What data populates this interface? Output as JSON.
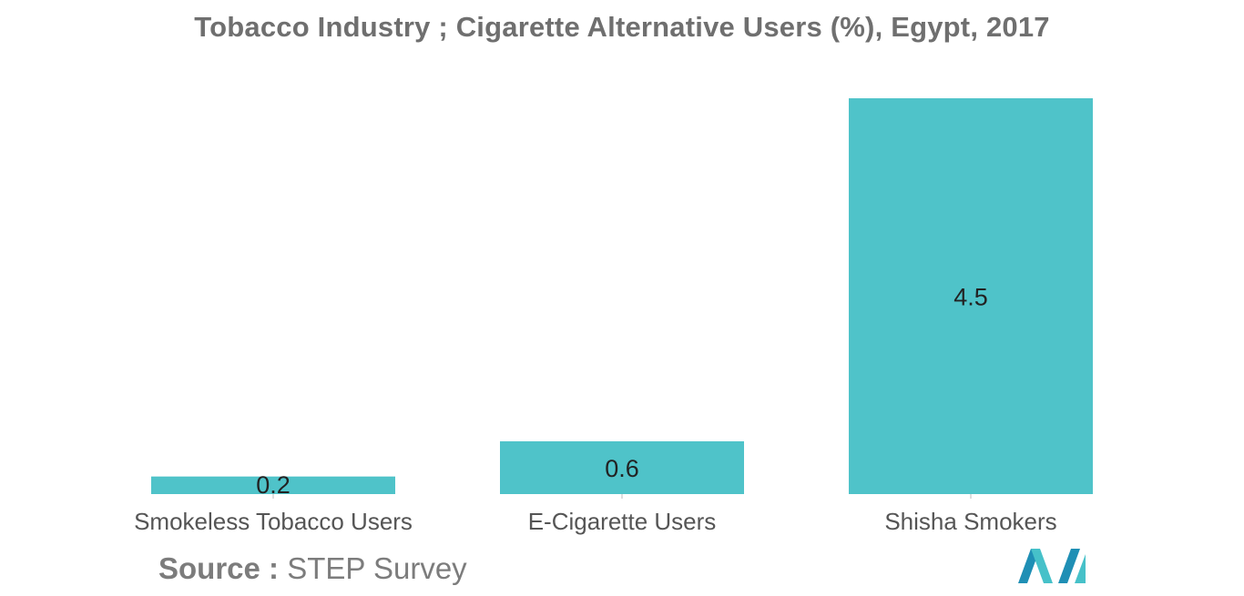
{
  "chart_data": {
    "type": "bar",
    "title": "Tobacco Industry ; Cigarette Alternative Users (%), Egypt, 2017",
    "categories": [
      "Smokeless Tobacco Users",
      "E-Cigarette Users",
      "Shisha Smokers"
    ],
    "values": [
      0.2,
      0.6,
      4.5
    ],
    "data_labels": [
      "0.2",
      "0.6",
      "4.5"
    ],
    "xlabel": "",
    "ylabel": "",
    "ylim": [
      0,
      4.5
    ],
    "grid": false,
    "legend": "none",
    "bar_color": "#4fc3c9"
  },
  "source": {
    "label": "Source :",
    "text": "STEP Survey"
  },
  "logo": {
    "icon": "mordor-intelligence-logo-icon",
    "colors": [
      "#1f8fb5",
      "#46c1c9"
    ]
  }
}
